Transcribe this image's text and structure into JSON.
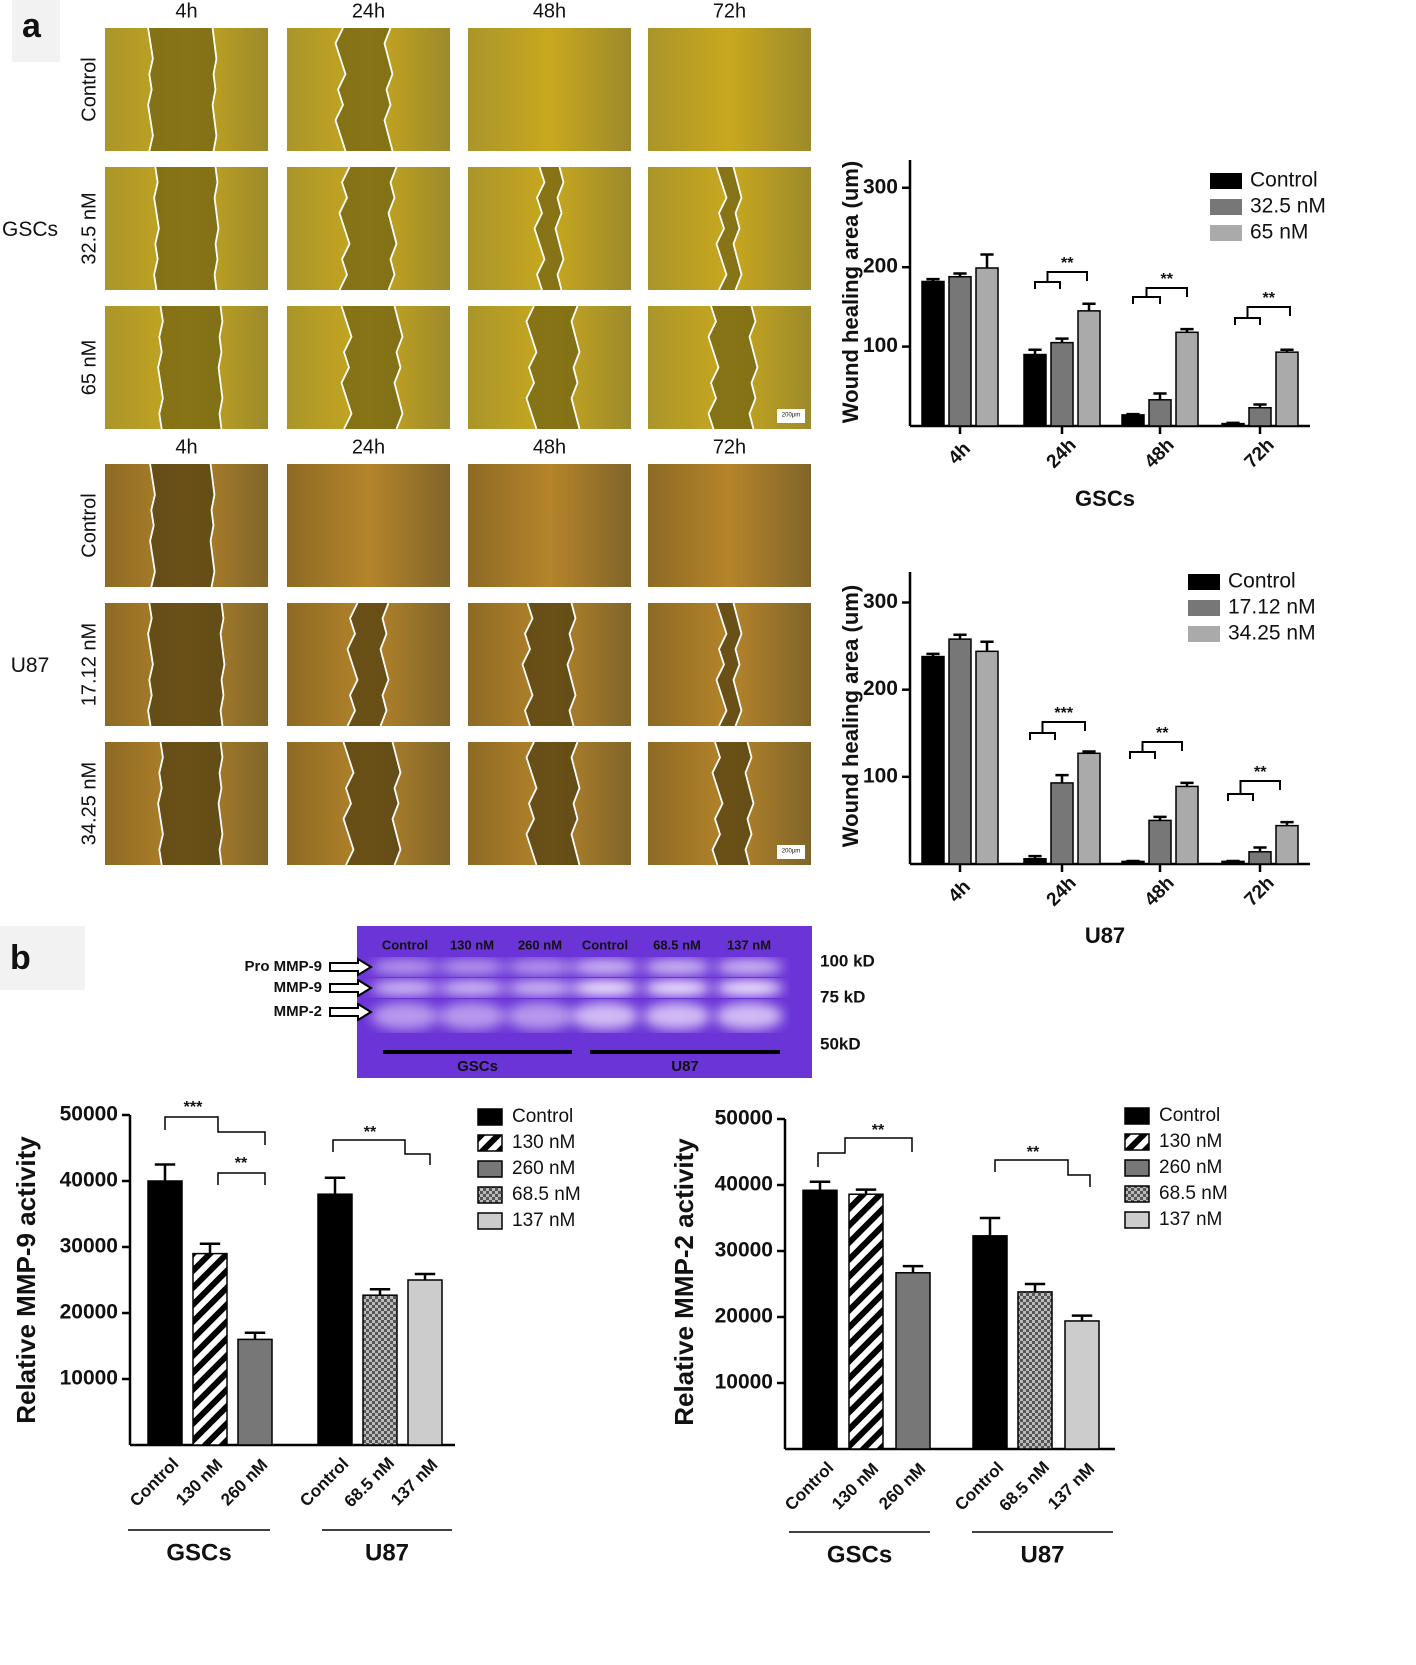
{
  "panel_labels": [
    "a",
    "b"
  ],
  "micrographs": [
    {
      "group": "GSCs",
      "time_labels": [
        "4h",
        "24h",
        "48h",
        "72h"
      ],
      "rows": [
        "Control",
        "32.5 nM",
        "65 nM"
      ],
      "scale_bar": "200μm"
    },
    {
      "group": "U87",
      "time_labels": [
        "4h",
        "24h",
        "48h",
        "72h"
      ],
      "rows": [
        "Control",
        "17.12 nM",
        "34.25 nM"
      ],
      "scale_bar": "200μm"
    }
  ],
  "gel": {
    "lanes": [
      "Control",
      "130 nM",
      "260 nM",
      "Control",
      "68.5 nM",
      "137 nM"
    ],
    "bands": [
      "Pro MMP-9",
      "MMP-9",
      "MMP-2"
    ],
    "markers": [
      "100 kD",
      "75 kD",
      "50kD"
    ],
    "groups": [
      "GSCs",
      "U87"
    ]
  },
  "chart_data": [
    {
      "type": "bar",
      "xlabel": "GSCs",
      "ylabel": "Wound healing area (um)",
      "categories": [
        "4h",
        "24h",
        "48h",
        "72h"
      ],
      "series": [
        {
          "name": "Control",
          "color": "#000000",
          "values": [
            182,
            90,
            14,
            3
          ],
          "errors": [
            3,
            6,
            1,
            1
          ]
        },
        {
          "name": "32.5 nM",
          "color": "#777777",
          "values": [
            188,
            105,
            33,
            23
          ],
          "errors": [
            4,
            5,
            8,
            4
          ]
        },
        {
          "name": "65 nM",
          "color": "#aaaaaa",
          "values": [
            199,
            145,
            118,
            93
          ],
          "errors": [
            17,
            9,
            4,
            3
          ]
        }
      ],
      "annotations": [
        "**",
        "**",
        "**"
      ],
      "ylim": [
        0,
        335
      ],
      "yticks": [
        100,
        200,
        300
      ],
      "legend": "upper right"
    },
    {
      "type": "bar",
      "xlabel": "U87",
      "ylabel": "Wound healing area (um)",
      "categories": [
        "4h",
        "24h",
        "48h",
        "72h"
      ],
      "series": [
        {
          "name": "Control",
          "color": "#000000",
          "values": [
            238,
            6,
            3,
            3
          ],
          "errors": [
            3,
            3,
            0.5,
            0.5
          ]
        },
        {
          "name": "17.12 nM",
          "color": "#777777",
          "values": [
            258,
            93,
            50,
            14
          ],
          "errors": [
            5,
            9,
            4,
            5
          ]
        },
        {
          "name": "34.25 nM",
          "color": "#aaaaaa",
          "values": [
            244,
            127,
            89,
            44
          ],
          "errors": [
            11,
            2,
            4,
            4
          ]
        }
      ],
      "annotations": [
        "***",
        "**",
        "**"
      ],
      "ylim": [
        0,
        335
      ],
      "yticks": [
        100,
        200,
        300
      ],
      "legend": "upper right"
    },
    {
      "type": "bar",
      "ylabel": "Relative MMP-9 activity",
      "categories": [
        "Control",
        "130 nM",
        "260 nM",
        "Control",
        "68.5 nM",
        "137 nM"
      ],
      "values": [
        40000,
        29000,
        16000,
        38000,
        22700,
        25000
      ],
      "errors": [
        2500,
        1500,
        1000,
        2500,
        900,
        900
      ],
      "colors": [
        "#000000",
        "pattern:stripes",
        "#777777",
        "#000000",
        "pattern:checker",
        "#cccccc"
      ],
      "groups": [
        "GSCs",
        "U87"
      ],
      "legend_entries": [
        {
          "name": "Control",
          "color": "#000000"
        },
        {
          "name": "130 nM",
          "color": "pattern:stripes"
        },
        {
          "name": "260 nM",
          "color": "#777777"
        },
        {
          "name": "68.5 nM",
          "color": "pattern:checker"
        },
        {
          "name": "137 nM",
          "color": "#cccccc"
        }
      ],
      "annotations": [
        "***",
        "**",
        "**"
      ],
      "ylim": [
        0,
        50000
      ],
      "yticks": [
        10000,
        20000,
        30000,
        40000,
        50000
      ]
    },
    {
      "type": "bar",
      "ylabel": "Relative MMP-2 activity",
      "categories": [
        "Control",
        "130 nM",
        "260 nM",
        "Control",
        "68.5 nM",
        "137 nM"
      ],
      "values": [
        39200,
        38600,
        26700,
        32300,
        23800,
        19400
      ],
      "errors": [
        1300,
        700,
        1000,
        2700,
        1200,
        800
      ],
      "colors": [
        "#000000",
        "pattern:stripes",
        "#777777",
        "#000000",
        "pattern:checker",
        "#cccccc"
      ],
      "groups": [
        "GSCs",
        "U87"
      ],
      "legend_entries": [
        {
          "name": "Control",
          "color": "#000000"
        },
        {
          "name": "130 nM",
          "color": "pattern:stripes"
        },
        {
          "name": "260 nM",
          "color": "#777777"
        },
        {
          "name": "68.5 nM",
          "color": "pattern:checker"
        },
        {
          "name": "137 nM",
          "color": "#cccccc"
        }
      ],
      "annotations": [
        "**",
        "**"
      ],
      "ylim": [
        0,
        50000
      ],
      "yticks": [
        10000,
        20000,
        30000,
        40000,
        50000
      ]
    }
  ]
}
